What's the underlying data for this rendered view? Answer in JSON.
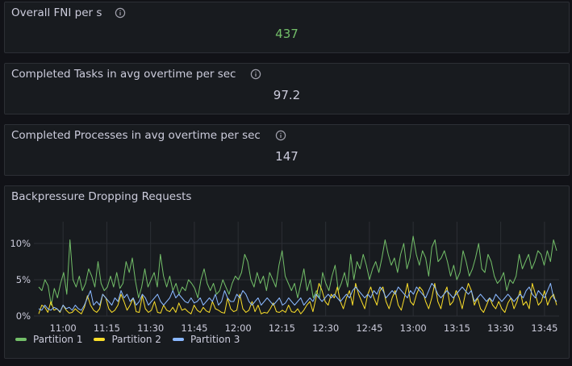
{
  "panels": [
    {
      "title": "Overall FNI per s",
      "value": "437",
      "value_color": "#73bf69"
    },
    {
      "title": "Completed Tasks in avg overtime per sec",
      "value": "97.2",
      "value_color": "#ccccdc"
    },
    {
      "title": "Completed Processes in avg overtime per sec",
      "value": "147",
      "value_color": "#ccccdc"
    }
  ],
  "icons": {
    "info": "info-circle-icon"
  },
  "chart_data": {
    "type": "line",
    "title": "Backpressure Dropping Requests",
    "y_ticks": [
      "10%",
      "5%",
      "0%"
    ],
    "ylim": [
      0,
      10
    ],
    "x_ticks": [
      "11:00",
      "11:15",
      "11:30",
      "11:45",
      "12:00",
      "12:15",
      "12:30",
      "12:45",
      "13:00",
      "13:15",
      "13:30",
      "13:45"
    ],
    "x_range": [
      "10:50",
      "13:50"
    ],
    "grid": true,
    "legend_placement": "bottom-left",
    "series": [
      {
        "name": "Partition 1",
        "color": "#73bf69",
        "values": [
          4.0,
          3.5,
          5.0,
          4.2,
          1.5,
          3.8,
          2.5,
          4.5,
          6.0,
          3.0,
          10.5,
          5.0,
          4.0,
          5.5,
          3.5,
          4.5,
          6.5,
          5.5,
          4.0,
          7.5,
          4.5,
          3.5,
          4.0,
          5.5,
          4.0,
          6.0,
          3.8,
          4.5,
          7.5,
          6.0,
          8.0,
          4.8,
          2.5,
          4.0,
          6.5,
          4.0,
          5.0,
          6.0,
          4.0,
          8.5,
          5.5,
          4.0,
          5.5,
          3.5,
          4.5,
          3.0,
          4.0,
          3.5,
          5.0,
          4.5,
          3.8,
          2.5,
          5.0,
          6.5,
          4.5,
          3.5,
          4.5,
          3.0,
          3.5,
          5.0,
          4.0,
          3.0,
          4.5,
          5.5,
          5.0,
          6.0,
          8.5,
          7.5,
          5.0,
          4.0,
          6.0,
          4.5,
          5.5,
          3.5,
          6.0,
          5.0,
          4.0,
          7.0,
          9.0,
          5.5,
          4.5,
          3.5,
          4.5,
          2.5,
          4.5,
          6.5,
          3.5,
          5.0,
          2.5,
          3.5,
          2.5,
          6.0,
          4.5,
          3.5,
          5.5,
          7.0,
          3.5,
          4.5,
          6.0,
          4.0,
          8.5,
          5.0,
          7.5,
          6.5,
          8.5,
          7.0,
          5.0,
          6.5,
          7.5,
          6.0,
          8.0,
          10.5,
          8.5,
          7.0,
          8.0,
          6.0,
          8.5,
          10.0,
          6.5,
          8.0,
          11.0,
          8.5,
          7.0,
          9.0,
          8.0,
          5.5,
          9.5,
          10.5,
          7.5,
          8.0,
          9.0,
          7.5,
          5.5,
          7.0,
          5.0,
          6.0,
          9.0,
          7.5,
          5.5,
          6.5,
          8.0,
          10.0,
          6.5,
          6.0,
          8.5,
          7.5,
          5.5,
          4.5,
          5.0,
          6.0,
          3.5,
          5.0,
          4.5,
          5.5,
          8.5,
          6.5,
          7.5,
          8.5,
          6.5,
          7.5,
          9.0,
          8.5,
          7.0,
          9.0,
          7.5,
          10.5,
          9.0
        ]
      },
      {
        "name": "Partition 2",
        "color": "#fade2a",
        "values": [
          0.3,
          1.5,
          1.2,
          0.5,
          2.0,
          0.8,
          1.0,
          0.5,
          1.5,
          0.8,
          0.4,
          0.5,
          1.0,
          0.6,
          0.3,
          1.2,
          2.8,
          1.5,
          0.8,
          0.5,
          1.0,
          3.0,
          2.5,
          1.0,
          0.5,
          0.8,
          1.5,
          3.0,
          2.0,
          0.8,
          1.5,
          2.5,
          0.6,
          0.5,
          2.8,
          1.0,
          0.5,
          0.8,
          2.0,
          0.5,
          0.4,
          1.5,
          0.8,
          0.6,
          1.2,
          0.5,
          1.8,
          0.8,
          1.0,
          0.6,
          0.3,
          1.5,
          0.8,
          0.5,
          1.2,
          0.7,
          0.5,
          2.0,
          1.0,
          0.8,
          0.5,
          0.4,
          2.5,
          1.0,
          0.6,
          0.8,
          3.0,
          1.0,
          0.5,
          0.8,
          2.0,
          0.6,
          1.5,
          0.3,
          0.5,
          0.4,
          1.0,
          1.8,
          0.6,
          0.5,
          0.8,
          0.5,
          1.5,
          0.6,
          0.5,
          1.0,
          0.3,
          0.8,
          1.5,
          2.0,
          0.6,
          2.5,
          4.5,
          3.5,
          2.0,
          1.5,
          3.0,
          2.5,
          4.0,
          2.0,
          1.0,
          2.5,
          3.5,
          1.5,
          4.5,
          3.0,
          2.0,
          1.0,
          3.0,
          4.0,
          2.5,
          1.5,
          3.5,
          4.0,
          2.0,
          1.0,
          2.5,
          3.5,
          1.5,
          0.8,
          2.5,
          4.5,
          2.0,
          1.5,
          3.0,
          4.0,
          3.5,
          2.0,
          1.0,
          2.5,
          4.5,
          2.0,
          1.0,
          3.0,
          4.0,
          1.5,
          2.0,
          3.5,
          2.5,
          1.0,
          3.0,
          4.5,
          3.5,
          1.5,
          2.5,
          1.0,
          0.5,
          1.5,
          2.5,
          1.5,
          1.0,
          2.0,
          1.0,
          0.5,
          1.8,
          2.5,
          1.0,
          2.0,
          3.5,
          1.5,
          2.0,
          1.0,
          4.5,
          3.0,
          1.5,
          2.0,
          3.5,
          1.5,
          2.5,
          3.0,
          1.5
        ]
      },
      {
        "name": "Partition 3",
        "color": "#8ab8ff",
        "values": [
          1.0,
          0.8,
          1.5,
          1.0,
          0.8,
          1.2,
          1.0,
          0.6,
          1.5,
          1.0,
          1.2,
          0.8,
          1.5,
          1.0,
          0.8,
          1.5,
          2.5,
          3.5,
          1.5,
          2.0,
          1.5,
          3.0,
          2.5,
          2.0,
          1.5,
          2.5,
          2.0,
          3.5,
          2.5,
          3.0,
          2.0,
          2.5,
          1.5,
          2.0,
          3.0,
          2.5,
          1.5,
          2.0,
          2.5,
          3.0,
          2.0,
          1.5,
          2.0,
          2.5,
          3.5,
          2.5,
          3.0,
          2.5,
          2.0,
          1.8,
          2.5,
          1.8,
          2.0,
          2.5,
          1.5,
          2.0,
          2.5,
          2.0,
          3.0,
          1.5,
          2.0,
          3.5,
          2.5,
          2.0,
          2.0,
          3.0,
          2.5,
          3.5,
          3.0,
          2.0,
          1.5,
          2.0,
          2.5,
          1.5,
          2.0,
          2.5,
          2.0,
          1.5,
          2.0,
          2.5,
          1.5,
          1.8,
          2.5,
          2.0,
          1.5,
          2.0,
          2.5,
          1.5,
          2.0,
          2.5,
          2.0,
          3.0,
          2.5,
          2.0,
          2.5,
          3.0,
          2.5,
          3.0,
          2.5,
          2.0,
          2.5,
          3.0,
          2.5,
          3.5,
          4.0,
          3.5,
          3.0,
          2.5,
          3.0,
          2.5,
          3.5,
          3.0,
          4.0,
          3.5,
          2.5,
          3.0,
          3.5,
          3.0,
          4.0,
          3.5,
          3.0,
          2.5,
          3.5,
          3.0,
          4.0,
          3.5,
          3.0,
          2.5,
          3.5,
          4.5,
          4.0,
          3.0,
          2.5,
          3.0,
          3.5,
          3.0,
          2.5,
          3.0,
          3.5,
          4.0,
          3.5,
          3.0,
          3.5,
          2.0,
          2.5,
          3.0,
          2.5,
          2.0,
          2.5,
          2.0,
          3.0,
          2.5,
          2.0,
          2.5,
          3.0,
          2.5,
          2.0,
          2.5,
          3.0,
          2.5,
          3.5,
          4.0,
          3.0,
          2.5,
          3.5,
          3.0,
          2.5,
          3.5,
          4.5,
          2.5,
          2.0
        ]
      }
    ]
  }
}
